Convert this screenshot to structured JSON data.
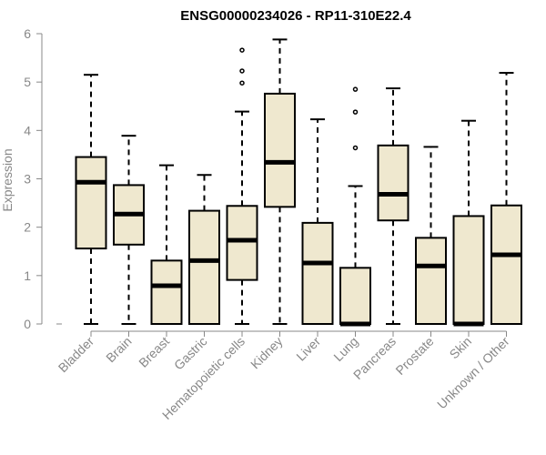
{
  "chart_data": {
    "type": "boxplot",
    "title": "ENSG00000234026 - RP11-310E22.4",
    "xlabel": "",
    "ylabel": "Expression",
    "ylim": [
      0,
      6
    ],
    "yticks": [
      0,
      1,
      2,
      3,
      4,
      5,
      6
    ],
    "grid": false,
    "legend": "none",
    "colors": {
      "box_fill": "#efe8cf",
      "box_stroke": "#000000",
      "axis": "#888888",
      "median": "#000000"
    },
    "categories": [
      "Bladder",
      "Brain",
      "Breast",
      "Gastric",
      "Hematopoietic cells",
      "Kidney",
      "Liver",
      "Lung",
      "Pancreas",
      "Prostate",
      "Skin",
      "Unknown / Other"
    ],
    "boxes": [
      {
        "min": 0,
        "q1": 1.56,
        "median": 2.93,
        "q3": 3.45,
        "max": 5.15,
        "outliers": []
      },
      {
        "min": 0,
        "q1": 1.64,
        "median": 2.27,
        "q3": 2.87,
        "max": 3.89,
        "outliers": []
      },
      {
        "min": 0,
        "q1": 0,
        "median": 0.79,
        "q3": 1.31,
        "max": 3.28,
        "outliers": []
      },
      {
        "min": 0,
        "q1": 0,
        "median": 1.31,
        "q3": 2.34,
        "max": 3.08,
        "outliers": []
      },
      {
        "min": 0,
        "q1": 0.91,
        "median": 1.73,
        "q3": 2.44,
        "max": 4.39,
        "outliers": [
          4.98,
          5.23,
          5.66
        ]
      },
      {
        "min": 0,
        "q1": 2.42,
        "median": 3.34,
        "q3": 4.76,
        "max": 5.88,
        "outliers": []
      },
      {
        "min": 0,
        "q1": 0,
        "median": 1.26,
        "q3": 2.09,
        "max": 4.23,
        "outliers": []
      },
      {
        "min": 0,
        "q1": 0,
        "median": 0,
        "q3": 1.16,
        "max": 2.85,
        "outliers": [
          3.64,
          4.38,
          4.85
        ]
      },
      {
        "min": 0,
        "q1": 2.14,
        "median": 2.68,
        "q3": 3.69,
        "max": 4.87,
        "outliers": []
      },
      {
        "min": 0,
        "q1": 0,
        "median": 1.2,
        "q3": 1.78,
        "max": 3.66,
        "outliers": []
      },
      {
        "min": 0,
        "q1": 0,
        "median": 0,
        "q3": 2.23,
        "max": 4.2,
        "outliers": []
      },
      {
        "min": 0,
        "q1": 0,
        "median": 1.43,
        "q3": 2.45,
        "max": 5.19,
        "outliers": []
      }
    ]
  }
}
